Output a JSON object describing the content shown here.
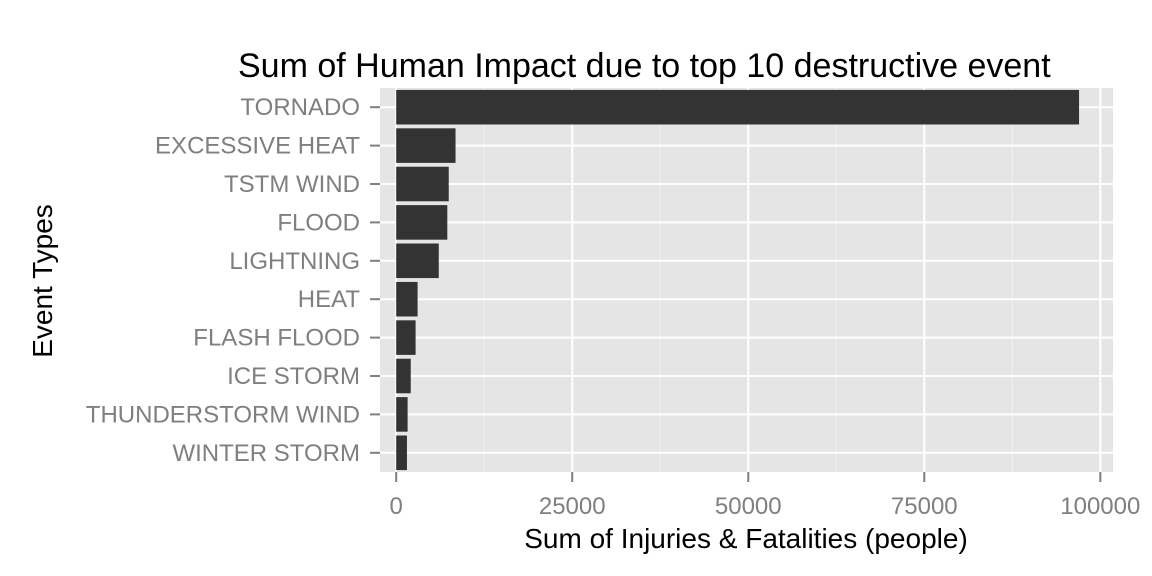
{
  "chart_data": {
    "type": "bar",
    "orientation": "horizontal",
    "title": "Sum of Human Impact due to top 10 destructive event",
    "xlabel": "Sum of Injuries & Fatalities (people)",
    "ylabel": "Event Types",
    "categories": [
      "TORNADO",
      "EXCESSIVE HEAT",
      "TSTM WIND",
      "FLOOD",
      "LIGHTNING",
      "HEAT",
      "FLASH FLOOD",
      "ICE STORM",
      "THUNDERSTORM WIND",
      "WINTER STORM"
    ],
    "values": [
      96979,
      8428,
      7461,
      7259,
      6046,
      3037,
      2755,
      2064,
      1621,
      1527
    ],
    "xlim": [
      -2300,
      101800
    ],
    "xticks": [
      0,
      25000,
      50000,
      75000,
      100000
    ],
    "xtick_labels": [
      "0",
      "25000",
      "50000",
      "75000",
      "100000"
    ],
    "bar_color": "#333333",
    "panel_color": "#e5e5e5",
    "grid": true,
    "legend": "none"
  }
}
